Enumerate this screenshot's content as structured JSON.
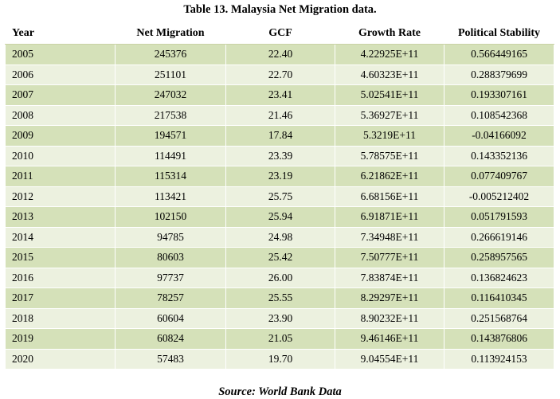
{
  "caption": "Table 13. Malaysia Net Migration data.",
  "source": "Source: World Bank Data",
  "columns": [
    "Year",
    "Net Migration",
    "GCF",
    "Growth Rate",
    "Political Stability"
  ],
  "rows": [
    [
      "2005",
      "245376",
      "22.40",
      "4.22925E+11",
      "0.566449165"
    ],
    [
      "2006",
      "251101",
      "22.70",
      "4.60323E+11",
      "0.288379699"
    ],
    [
      "2007",
      "247032",
      "23.41",
      "5.02541E+11",
      "0.193307161"
    ],
    [
      "2008",
      "217538",
      "21.46",
      "5.36927E+11",
      "0.108542368"
    ],
    [
      "2009",
      "194571",
      "17.84",
      "5.3219E+11",
      "-0.04166092"
    ],
    [
      "2010",
      "114491",
      "23.39",
      "5.78575E+11",
      "0.143352136"
    ],
    [
      "2011",
      "115314",
      "23.19",
      "6.21862E+11",
      "0.077409767"
    ],
    [
      "2012",
      "113421",
      "25.75",
      "6.68156E+11",
      "-0.005212402"
    ],
    [
      "2013",
      "102150",
      "25.94",
      "6.91871E+11",
      "0.051791593"
    ],
    [
      "2014",
      "94785",
      "24.98",
      "7.34948E+11",
      "0.266619146"
    ],
    [
      "2015",
      "80603",
      "25.42",
      "7.50777E+11",
      "0.258957565"
    ],
    [
      "2016",
      "97737",
      "26.00",
      "7.83874E+11",
      "0.136824623"
    ],
    [
      "2017",
      "78257",
      "25.55",
      "8.29297E+11",
      "0.116410345"
    ],
    [
      "2018",
      "60604",
      "23.90",
      "8.90232E+11",
      "0.251568764"
    ],
    [
      "2019",
      "60824",
      "21.05",
      "9.46146E+11",
      "0.143876806"
    ],
    [
      "2020",
      "57483",
      "19.70",
      "9.04554E+11",
      "0.113924153"
    ]
  ],
  "colors": {
    "row_dark": "#d5e1b9",
    "row_light": "#ecf1df"
  }
}
